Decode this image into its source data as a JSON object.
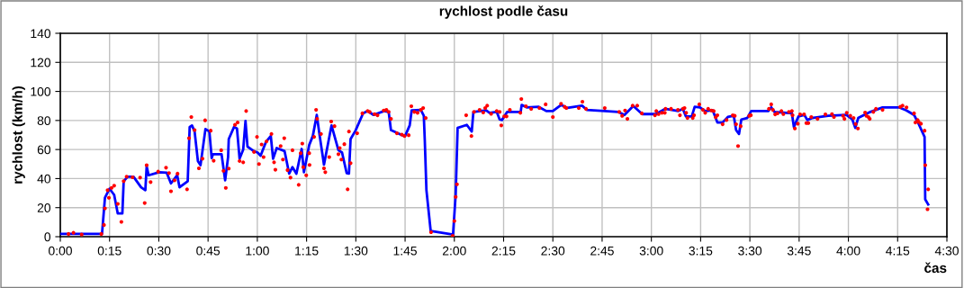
{
  "chart_data": {
    "type": "line",
    "title": "rychlost podle času",
    "xlabel": "čas",
    "ylabel": "rychlost (km/h)",
    "xlim": [
      0,
      270
    ],
    "ylim": [
      0,
      140
    ],
    "xticks": [
      {
        "value": 0,
        "label": "0:00"
      },
      {
        "value": 15,
        "label": "0:15"
      },
      {
        "value": 30,
        "label": "0:30"
      },
      {
        "value": 45,
        "label": "0:45"
      },
      {
        "value": 60,
        "label": "1:00"
      },
      {
        "value": 75,
        "label": "1:15"
      },
      {
        "value": 90,
        "label": "1:30"
      },
      {
        "value": 105,
        "label": "1:45"
      },
      {
        "value": 120,
        "label": "2:00"
      },
      {
        "value": 135,
        "label": "2:15"
      },
      {
        "value": 150,
        "label": "2:30"
      },
      {
        "value": 165,
        "label": "2:45"
      },
      {
        "value": 180,
        "label": "3:00"
      },
      {
        "value": 195,
        "label": "3:15"
      },
      {
        "value": 210,
        "label": "3:30"
      },
      {
        "value": 225,
        "label": "3:45"
      },
      {
        "value": 240,
        "label": "4:00"
      },
      {
        "value": 255,
        "label": "4:15"
      },
      {
        "value": 270,
        "label": "4:30"
      }
    ],
    "yticks": [
      0,
      20,
      40,
      60,
      80,
      100,
      120,
      140
    ],
    "grid": true,
    "legend": false,
    "series": [
      {
        "color": "#0000ff",
        "marker": "none",
        "x": [
          0,
          12.7,
          13.6,
          15.0,
          16.4,
          17.5,
          18.9,
          19.3,
          20.5,
          22.3,
          24.6,
          25.9,
          26.3,
          26.9,
          30.1,
          32.4,
          33.7,
          35.6,
          36.3,
          38.8,
          39.4,
          40.1,
          40.9,
          41.9,
          42.7,
          44.2,
          45.4,
          46.1,
          46.5,
          49.1,
          50.2,
          51.1,
          51.3,
          52.9,
          53.8,
          54.6,
          55.7,
          56.4,
          57.0,
          58.9,
          60.1,
          61.0,
          61.9,
          62.6,
          64.1,
          64.8,
          65.9,
          68.3,
          69.7,
          70.7,
          71.9,
          73.5,
          74.2,
          75.8,
          76.9,
          78.1,
          79.0,
          80.3,
          82.6,
          84.7,
          85.8,
          87.2,
          87.9,
          88.4,
          89.9,
          92.2,
          93.6,
          95.4,
          98.6,
          100.0,
          100.7,
          104.1,
          105.0,
          106.4,
          107.0,
          109.8,
          110.7,
          111.0,
          111.5,
          112.8,
          119.6,
          120.4,
          121.0,
          123.8,
          125.3,
          125.8,
          129.7,
          130.7,
          132.9,
          133.8,
          134.5,
          136.1,
          140.2,
          140.5,
          142.0,
          145.7,
          148.0,
          150.0,
          152.5,
          154.4,
          158.9,
          160.3,
          165.8,
          169.9,
          171.8,
          174.5,
          177.2,
          181.4,
          184.2,
          188.2,
          189.6,
          190.5,
          192.3,
          193.2,
          194.8,
          196.4,
          198.7,
          200.1,
          201.7,
          203.3,
          205.1,
          205.8,
          206.7,
          207.4,
          209.2,
          210.4,
          215.6,
          216.5,
          217.5,
          222.8,
          223.4,
          224.8,
          226.6,
          227.5,
          228.9,
          233.9,
          239.4,
          241.2,
          242.1,
          243.0,
          246.7,
          250.4,
          255.4,
          257.7,
          260.0,
          261.4,
          263.2,
          263.4,
          264.3
        ],
        "values": [
          1.9,
          1.9,
          26.8,
          33,
          28.8,
          16,
          16,
          38.2,
          41.3,
          41.3,
          34,
          32,
          48.5,
          42.3,
          44.4,
          44,
          36.7,
          42.3,
          34,
          38.2,
          75.5,
          76.6,
          72.4,
          52.1,
          49.2,
          74.1,
          72.4,
          54.1,
          56.8,
          56.8,
          38.8,
          54.8,
          67.2,
          75.5,
          74.5,
          53.7,
          60,
          79.7,
          62,
          58.9,
          57.9,
          55.8,
          61,
          65.1,
          69.3,
          53.7,
          61,
          58.9,
          43.4,
          47.9,
          43.4,
          60.4,
          44.4,
          63.1,
          69.3,
          83.8,
          69.3,
          49.6,
          76.6,
          59.5,
          57.9,
          43.8,
          43.4,
          67.2,
          73,
          84.9,
          86.5,
          83.8,
          86.5,
          85.9,
          73.4,
          69.9,
          69.3,
          76.6,
          86.9,
          87.3,
          83.2,
          66.2,
          32,
          3.9,
          1.5,
          28.8,
          74.9,
          77,
          72.4,
          85.9,
          86.9,
          85.3,
          85.9,
          80.7,
          80.3,
          85.9,
          85.9,
          90.7,
          89,
          89.4,
          86.5,
          86.5,
          90.7,
          88.6,
          90.2,
          87.3,
          86.5,
          85.9,
          83.8,
          90,
          84.4,
          84.4,
          88,
          86.5,
          88,
          82.8,
          82.8,
          89.4,
          89,
          86.5,
          86.9,
          78.6,
          78.6,
          82.4,
          83.2,
          73.4,
          70.7,
          80.7,
          81.7,
          86.5,
          86.5,
          89,
          85.9,
          84.9,
          75.5,
          82.8,
          83.8,
          80.3,
          81.7,
          83.2,
          83.8,
          80.7,
          74.9,
          81.7,
          85.9,
          89,
          89,
          86.9,
          83.8,
          77.6,
          68.7,
          25.7,
          22.2
        ]
      },
      {
        "type": "scatter",
        "color": "#ff0000",
        "marker": "circle",
        "x": [
          2.5,
          4,
          6.5,
          12.5,
          13.3,
          13.6,
          14.4,
          14.8,
          15.6,
          16.4,
          17.5,
          18.6,
          19.3,
          20.2,
          22,
          24.3,
          25.7,
          26.3,
          27.5,
          29.8,
          32.2,
          33.1,
          33.7,
          34.8,
          35.7,
          38.6,
          39.2,
          39.9,
          40.9,
          42.2,
          43.3,
          44.1,
          45.8,
          46.7,
          49,
          49.7,
          50.4,
          51.3,
          53.2,
          54,
          54.6,
          55.7,
          56.6,
          59,
          59.9,
          60.5,
          61.3,
          61.9,
          62.8,
          64.3,
          65.1,
          65.5,
          67.1,
          68.2,
          67.8,
          69.2,
          70.1,
          70.7,
          72.6,
          73.2,
          73.7,
          74,
          74.9,
          75.8,
          75.9,
          77.3,
          77.9,
          78.2,
          79.4,
          80.3,
          80.7,
          81.9,
          82.5,
          83.5,
          84.7,
          85.1,
          85.6,
          86.5,
          87.5,
          87.9,
          88.4,
          90.4,
          92,
          93.6,
          94.2,
          95.7,
          96.6,
          98.5,
          99.3,
          100,
          100.7,
          102.5,
          104,
          104.8,
          106.1,
          106.9,
          107.8,
          108.8,
          109.8,
          110.5,
          111.3,
          112.9,
          119.5,
          120,
          120.4,
          120.8,
          123.6,
          125.2,
          126,
          127.7,
          128.8,
          129.4,
          130,
          131.2,
          132.9,
          133.8,
          134.3,
          135.2,
          135.9,
          136.9,
          140.1,
          140.4,
          141.8,
          143.4,
          145.9,
          147.8,
          150,
          152.5,
          153.6,
          154.1,
          157.9,
          159,
          160.1,
          165.8,
          170.2,
          171.1,
          172,
          172.7,
          174.3,
          175.7,
          177.1,
          181.1,
          181.5,
          182.2,
          183.2,
          184.1,
          184.3,
          186,
          188.1,
          188.7,
          189.6,
          190.1,
          190.6,
          191,
          192.6,
          193,
          194.6,
          195.7,
          196.4,
          197.3,
          198.3,
          199,
          199.6,
          200.1,
          201.7,
          202.9,
          204.8,
          205.4,
          205.8,
          206.4,
          207.2,
          209.8,
          210.3,
          215.8,
          216.5,
          217,
          217.7,
          218.4,
          219.6,
          220.2,
          221.9,
          222.8,
          223,
          223.7,
          224.6,
          225.3,
          226.5,
          227.2,
          227.8,
          228.7,
          230.6,
          233,
          235,
          235.6,
          238.4,
          238.8,
          239.5,
          240.6,
          241.6,
          242.2,
          242.9,
          245.1,
          245.5,
          246.1,
          246.5,
          247.6,
          248.4,
          250.4,
          255.8,
          256.5,
          257.7,
          260,
          260.4,
          261.1,
          261.4,
          262.1,
          263.2,
          263.4,
          264.3,
          264.1
        ],
        "values": [
          1.9,
          2.7,
          1.5,
          1.9,
          8.1,
          19.5,
          32,
          26.8,
          33.6,
          35.1,
          22.6,
          10.2,
          38.2,
          41.3,
          40.9,
          40.7,
          23.2,
          49.2,
          37.6,
          44.8,
          47.5,
          43.8,
          31.3,
          38.8,
          43.4,
          32.6,
          67.8,
          82.4,
          73.4,
          47.1,
          53.7,
          80.1,
          73,
          52.3,
          59.5,
          45.4,
          33.6,
          46.9,
          77,
          78.6,
          52.1,
          51.2,
          86.5,
          58.3,
          68.7,
          50,
          63.5,
          54.8,
          65.6,
          70.7,
          51.2,
          46.1,
          62.4,
          67.8,
          53.1,
          45.9,
          40.7,
          59.5,
          35.7,
          57.5,
          64.1,
          47.9,
          42.3,
          57.5,
          49.4,
          68.7,
          87.3,
          81.1,
          70.7,
          47.1,
          44.4,
          54.8,
          79.3,
          76.1,
          56.8,
          61,
          53.1,
          63.7,
          32.6,
          72.4,
          50.6,
          71.2,
          84.9,
          86.5,
          85.9,
          84.4,
          83.6,
          86.9,
          87.3,
          85.9,
          81.1,
          71.2,
          70.3,
          69.3,
          69.9,
          89.8,
          85.9,
          85.3,
          87.3,
          88.6,
          81.7,
          3.1,
          0.6,
          10.8,
          27.4,
          36.1,
          83.6,
          69.3,
          85.9,
          87.3,
          85.5,
          88.6,
          90.2,
          84.6,
          86.5,
          85.9,
          76.6,
          82.8,
          82.8,
          87.3,
          85.3,
          94.8,
          89.8,
          88,
          88.6,
          91.1,
          82.4,
          91.5,
          89.4,
          88.6,
          88.6,
          92.9,
          88,
          88.6,
          85.9,
          83.2,
          86.9,
          81.1,
          90.2,
          90.2,
          84.9,
          83.6,
          86.5,
          84.4,
          85.3,
          85.3,
          88,
          88,
          87.3,
          83.6,
          88,
          88.6,
          85.3,
          81.7,
          81.7,
          83.6,
          91.1,
          87.3,
          85.3,
          88,
          86.9,
          86.5,
          82.2,
          83.6,
          77.4,
          80.3,
          83.6,
          83.2,
          77.4,
          62.4,
          76.1,
          83.2,
          83.6,
          88,
          91.1,
          87.3,
          84.2,
          84.9,
          86.5,
          84.4,
          85.9,
          86.5,
          83.6,
          74.5,
          77.8,
          84.2,
          84.2,
          78.2,
          78.2,
          82.4,
          81.1,
          84.2,
          84.4,
          82.4,
          83.2,
          81.1,
          85.3,
          83.2,
          81.7,
          77.6,
          74.5,
          85.5,
          83.2,
          82.4,
          81.1,
          85.9,
          88,
          87.3,
          89.4,
          90.2,
          89,
          84.9,
          78.6,
          80.3,
          79,
          77.8,
          73,
          49.2,
          32.6,
          18.9
        ]
      }
    ]
  }
}
